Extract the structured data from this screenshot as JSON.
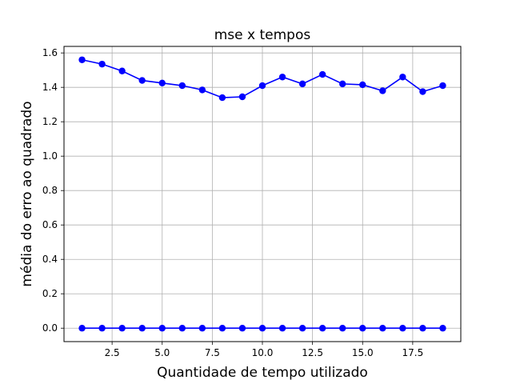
{
  "chart_data": {
    "type": "line",
    "title": "mse x tempos",
    "xlabel": "Quantidade de tempo utilizado",
    "ylabel": "média do erro ao quadrado",
    "xlim": [
      0.1,
      19.9
    ],
    "ylim": [
      -0.078,
      1.638
    ],
    "xticks": [
      2.5,
      5.0,
      7.5,
      10.0,
      12.5,
      15.0,
      17.5
    ],
    "xtick_labels": [
      "2.5",
      "5.0",
      "7.5",
      "10.0",
      "12.5",
      "15.0",
      "17.5"
    ],
    "yticks": [
      0.0,
      0.2,
      0.4,
      0.6,
      0.8,
      1.0,
      1.2,
      1.4,
      1.6
    ],
    "ytick_labels": [
      "0.0",
      "0.2",
      "0.4",
      "0.6",
      "0.8",
      "1.0",
      "1.2",
      "1.4",
      "1.6"
    ],
    "grid": true,
    "series": [
      {
        "color": "#0000ff",
        "marker": "circle",
        "x": [
          1,
          2,
          3,
          4,
          5,
          6,
          7,
          8,
          9,
          10,
          11,
          12,
          13,
          14,
          15,
          16,
          17,
          18,
          19
        ],
        "values": [
          1.56,
          1.535,
          1.495,
          1.44,
          1.425,
          1.41,
          1.385,
          1.34,
          1.345,
          1.41,
          1.46,
          1.42,
          1.475,
          1.42,
          1.415,
          1.38,
          1.46,
          1.375,
          1.41
        ]
      },
      {
        "color": "#0000ff",
        "marker": "circle",
        "x": [
          1,
          2,
          3,
          4,
          5,
          6,
          7,
          8,
          9,
          10,
          11,
          12,
          13,
          14,
          15,
          16,
          17,
          18,
          19
        ],
        "values": [
          0,
          0,
          0,
          0,
          0,
          0,
          0,
          0,
          0,
          0,
          0,
          0,
          0,
          0,
          0,
          0,
          0,
          0,
          0
        ]
      }
    ]
  }
}
